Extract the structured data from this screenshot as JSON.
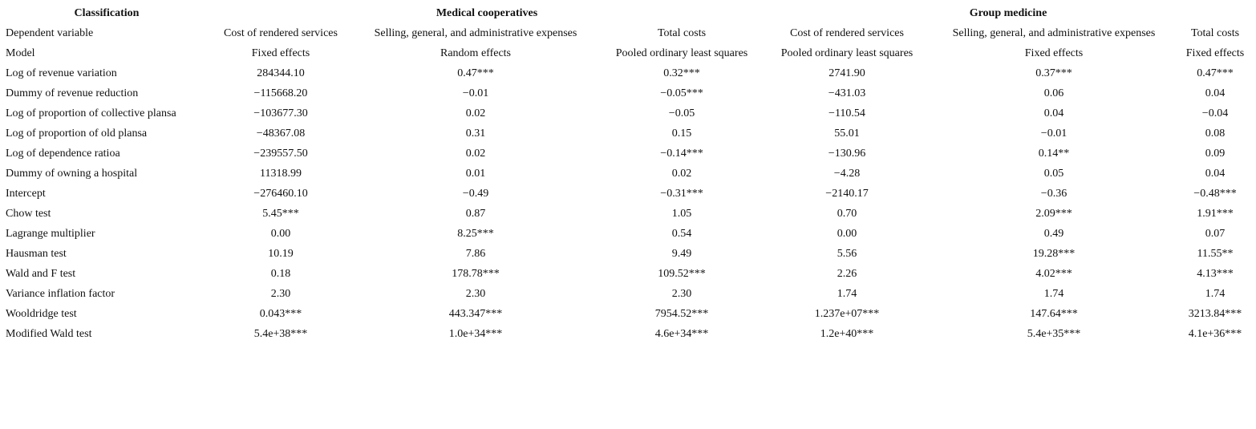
{
  "table": {
    "header": [
      "Classification",
      "Medical cooperatives",
      "Group medicine"
    ],
    "rows": [
      [
        "Dependent variable",
        "Cost of rendered services",
        "Selling, general, and administrative expenses",
        "Total costs",
        "Cost of rendered services",
        "Selling, general, and administrative expenses",
        "Total costs"
      ],
      [
        "Model",
        "Fixed effects",
        "Random effects",
        "Pooled ordinary least squares",
        "Pooled ordinary least squares",
        "Fixed effects",
        "Fixed effects"
      ],
      [
        "Log of revenue variation",
        "284344.10",
        "0.47***",
        "0.32***",
        "2741.90",
        "0.37***",
        "0.47***"
      ],
      [
        "Dummy of revenue reduction",
        "−115668.20",
        "−0.01",
        "−0.05***",
        "−431.03",
        "0.06",
        "0.04"
      ],
      [
        "Log of proportion of collective plansa",
        "−103677.30",
        "0.02",
        "−0.05",
        "−110.54",
        "0.04",
        "−0.04"
      ],
      [
        "Log of proportion of old plansa",
        "−48367.08",
        "0.31",
        "0.15",
        "55.01",
        "−0.01",
        "0.08"
      ],
      [
        "Log of dependence ratioa",
        "−239557.50",
        "0.02",
        "−0.14***",
        "−130.96",
        "0.14**",
        "0.09"
      ],
      [
        "Dummy of owning a hospital",
        "11318.99",
        "0.01",
        "0.02",
        "−4.28",
        "0.05",
        "0.04"
      ],
      [
        "Intercept",
        "−276460.10",
        "−0.49",
        "−0.31***",
        "−2140.17",
        "−0.36",
        "−0.48***"
      ],
      [
        "Chow test",
        "5.45***",
        "0.87",
        "1.05",
        "0.70",
        "2.09***",
        "1.91***"
      ],
      [
        "Lagrange multiplier",
        "0.00",
        "8.25***",
        "0.54",
        "0.00",
        "0.49",
        "0.07"
      ],
      [
        "Hausman test",
        "10.19",
        "7.86",
        "9.49",
        "5.56",
        "19.28***",
        "11.55**"
      ],
      [
        "Wald and F test",
        "0.18",
        "178.78***",
        "109.52***",
        "2.26",
        "4.02***",
        "4.13***"
      ],
      [
        "Variance inflation factor",
        "2.30",
        "2.30",
        "2.30",
        "1.74",
        "1.74",
        "1.74"
      ],
      [
        "Wooldridge test",
        "0.043***",
        "443.347***",
        "7954.52***",
        "1.237e+07***",
        "147.64***",
        "3213.84***"
      ],
      [
        "Modified Wald test",
        "5.4e+38***",
        "1.0e+34***",
        "4.6e+34***",
        "1.2e+40***",
        "5.4e+35***",
        "4.1e+36***"
      ]
    ]
  }
}
